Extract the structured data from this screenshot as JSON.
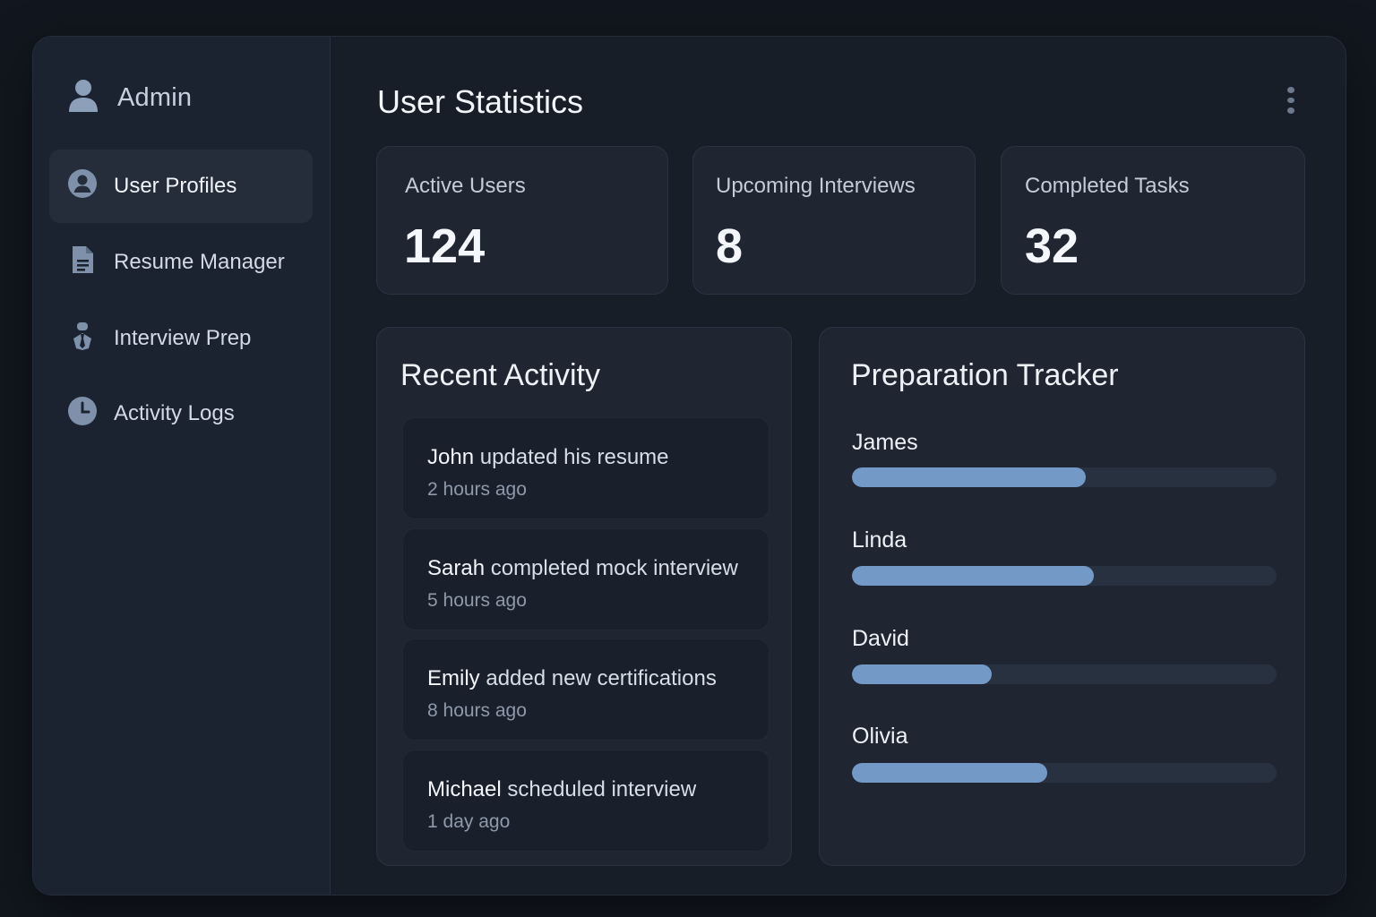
{
  "sidebar": {
    "brand": {
      "label": "Admin",
      "icon": "user-icon"
    },
    "items": [
      {
        "label": "User Profiles",
        "icon": "user-circle-icon",
        "active": true
      },
      {
        "label": "Resume Manager",
        "icon": "document-icon",
        "active": false
      },
      {
        "label": "Interview Prep",
        "icon": "person-tie-icon",
        "active": false
      },
      {
        "label": "Activity Logs",
        "icon": "clock-icon",
        "active": false
      }
    ]
  },
  "header": {
    "title": "User Statistics",
    "menu_icon": "kebab-menu-icon"
  },
  "stats": [
    {
      "label": "Active Users",
      "value": "124"
    },
    {
      "label": "Upcoming Interviews",
      "value": "8"
    },
    {
      "label": "Completed Tasks",
      "value": "32"
    }
  ],
  "recent_activity": {
    "title": "Recent Activity",
    "items": [
      {
        "name": "John",
        "action": "updated his resume",
        "time": "2 hours ago"
      },
      {
        "name": "Sarah",
        "action": "completed mock interview",
        "time": "5 hours ago"
      },
      {
        "name": "Emily",
        "action": "added new certifications",
        "time": "8 hours ago"
      },
      {
        "name": "Michael",
        "action": "scheduled interview",
        "time": "1 day ago"
      }
    ]
  },
  "tracker": {
    "title": "Preparation Tracker",
    "items": [
      {
        "name": "James",
        "progress": 0.55
      },
      {
        "name": "Linda",
        "progress": 0.57
      },
      {
        "name": "David",
        "progress": 0.33
      },
      {
        "name": "Olivia",
        "progress": 0.46
      }
    ]
  },
  "colors": {
    "accent": "#7399c6",
    "background": "#12171f",
    "panel": "#1f2632",
    "sidebar": "#1c2330"
  }
}
